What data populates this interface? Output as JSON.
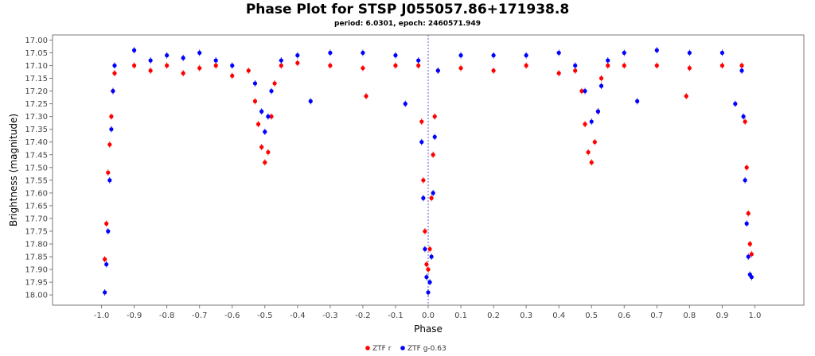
{
  "chart_data": {
    "type": "scatter",
    "title": "Phase Plot for STSP J055057.86+171938.8",
    "subtitle": "period: 6.0301, epoch: 2460571.949",
    "xlabel": "Phase",
    "ylabel": "Brightness (magnitude)",
    "xlim": [
      -1.15,
      1.15
    ],
    "ylim": [
      18.04,
      16.98
    ],
    "y_inverted": true,
    "grid": false,
    "reference_line_x": 0.0,
    "legend_placement": "bottom",
    "x_ticks": [
      "-1.0",
      "-0.9",
      "-0.8",
      "-0.7",
      "-0.6",
      "-0.5",
      "-0.4",
      "-0.3",
      "-0.2",
      "-0.1",
      "0.0",
      "0.1",
      "0.2",
      "0.3",
      "0.4",
      "0.5",
      "0.6",
      "0.7",
      "0.8",
      "0.9",
      "1.0"
    ],
    "y_ticks": [
      "17.00",
      "17.05",
      "17.10",
      "17.15",
      "17.20",
      "17.25",
      "17.30",
      "17.35",
      "17.40",
      "17.45",
      "17.50",
      "17.55",
      "17.60",
      "17.65",
      "17.70",
      "17.75",
      "17.80",
      "17.85",
      "17.90",
      "17.95",
      "18.00"
    ],
    "series": [
      {
        "name": "ZTF r",
        "color": "#ff0000",
        "description_points": [
          [
            -0.99,
            17.86
          ],
          [
            -0.985,
            17.72
          ],
          [
            -0.98,
            17.52
          ],
          [
            -0.975,
            17.41
          ],
          [
            -0.97,
            17.3
          ],
          [
            -0.965,
            17.2
          ],
          [
            -0.96,
            17.13
          ],
          [
            -0.9,
            17.1
          ],
          [
            -0.85,
            17.12
          ],
          [
            -0.8,
            17.1
          ],
          [
            -0.75,
            17.13
          ],
          [
            -0.7,
            17.11
          ],
          [
            -0.65,
            17.1
          ],
          [
            -0.6,
            17.14
          ],
          [
            -0.55,
            17.12
          ],
          [
            -0.53,
            17.24
          ],
          [
            -0.52,
            17.33
          ],
          [
            -0.51,
            17.42
          ],
          [
            -0.5,
            17.48
          ],
          [
            -0.49,
            17.44
          ],
          [
            -0.48,
            17.3
          ],
          [
            -0.47,
            17.17
          ],
          [
            -0.45,
            17.1
          ],
          [
            -0.4,
            17.09
          ],
          [
            -0.3,
            17.1
          ],
          [
            -0.2,
            17.11
          ],
          [
            -0.19,
            17.22
          ],
          [
            -0.1,
            17.1
          ],
          [
            -0.03,
            17.1
          ],
          [
            -0.02,
            17.32
          ],
          [
            -0.015,
            17.55
          ],
          [
            -0.01,
            17.75
          ],
          [
            -0.005,
            17.88
          ],
          [
            0.0,
            17.9
          ],
          [
            0.005,
            17.82
          ],
          [
            0.01,
            17.62
          ],
          [
            0.015,
            17.45
          ],
          [
            0.02,
            17.3
          ],
          [
            0.03,
            17.12
          ],
          [
            0.1,
            17.11
          ],
          [
            0.2,
            17.12
          ],
          [
            0.3,
            17.1
          ],
          [
            0.4,
            17.13
          ],
          [
            0.45,
            17.12
          ],
          [
            0.47,
            17.2
          ],
          [
            0.48,
            17.33
          ],
          [
            0.49,
            17.44
          ],
          [
            0.5,
            17.48
          ],
          [
            0.51,
            17.4
          ],
          [
            0.52,
            17.28
          ],
          [
            0.53,
            17.15
          ],
          [
            0.55,
            17.1
          ],
          [
            0.6,
            17.1
          ],
          [
            0.7,
            17.1
          ],
          [
            0.79,
            17.22
          ],
          [
            0.8,
            17.11
          ],
          [
            0.9,
            17.1
          ],
          [
            0.96,
            17.1
          ],
          [
            0.97,
            17.32
          ],
          [
            0.975,
            17.5
          ],
          [
            0.98,
            17.68
          ],
          [
            0.985,
            17.8
          ],
          [
            0.99,
            17.84
          ]
        ]
      },
      {
        "name": "ZTF g-0.63",
        "color": "#0000ff",
        "description_points": [
          [
            -0.99,
            17.99
          ],
          [
            -0.985,
            17.88
          ],
          [
            -0.98,
            17.75
          ],
          [
            -0.975,
            17.55
          ],
          [
            -0.97,
            17.35
          ],
          [
            -0.965,
            17.2
          ],
          [
            -0.96,
            17.1
          ],
          [
            -0.9,
            17.04
          ],
          [
            -0.85,
            17.08
          ],
          [
            -0.8,
            17.06
          ],
          [
            -0.75,
            17.07
          ],
          [
            -0.7,
            17.05
          ],
          [
            -0.65,
            17.08
          ],
          [
            -0.6,
            17.1
          ],
          [
            -0.53,
            17.17
          ],
          [
            -0.51,
            17.28
          ],
          [
            -0.5,
            17.36
          ],
          [
            -0.49,
            17.3
          ],
          [
            -0.48,
            17.2
          ],
          [
            -0.45,
            17.08
          ],
          [
            -0.4,
            17.06
          ],
          [
            -0.36,
            17.24
          ],
          [
            -0.3,
            17.05
          ],
          [
            -0.2,
            17.05
          ],
          [
            -0.1,
            17.06
          ],
          [
            -0.07,
            17.25
          ],
          [
            -0.03,
            17.08
          ],
          [
            -0.02,
            17.4
          ],
          [
            -0.015,
            17.62
          ],
          [
            -0.01,
            17.82
          ],
          [
            -0.005,
            17.93
          ],
          [
            0.0,
            17.99
          ],
          [
            0.005,
            17.95
          ],
          [
            0.01,
            17.85
          ],
          [
            0.015,
            17.6
          ],
          [
            0.02,
            17.38
          ],
          [
            0.03,
            17.12
          ],
          [
            0.1,
            17.06
          ],
          [
            0.2,
            17.06
          ],
          [
            0.3,
            17.06
          ],
          [
            0.4,
            17.05
          ],
          [
            0.45,
            17.1
          ],
          [
            0.48,
            17.2
          ],
          [
            0.5,
            17.32
          ],
          [
            0.52,
            17.28
          ],
          [
            0.53,
            17.18
          ],
          [
            0.55,
            17.08
          ],
          [
            0.6,
            17.05
          ],
          [
            0.64,
            17.24
          ],
          [
            0.7,
            17.04
          ],
          [
            0.8,
            17.05
          ],
          [
            0.9,
            17.05
          ],
          [
            0.94,
            17.25
          ],
          [
            0.96,
            17.12
          ],
          [
            0.965,
            17.3
          ],
          [
            0.97,
            17.55
          ],
          [
            0.975,
            17.72
          ],
          [
            0.98,
            17.85
          ],
          [
            0.985,
            17.92
          ],
          [
            0.99,
            17.93
          ]
        ]
      }
    ],
    "legend": [
      "ZTF r",
      "ZTF g-0.63"
    ]
  }
}
